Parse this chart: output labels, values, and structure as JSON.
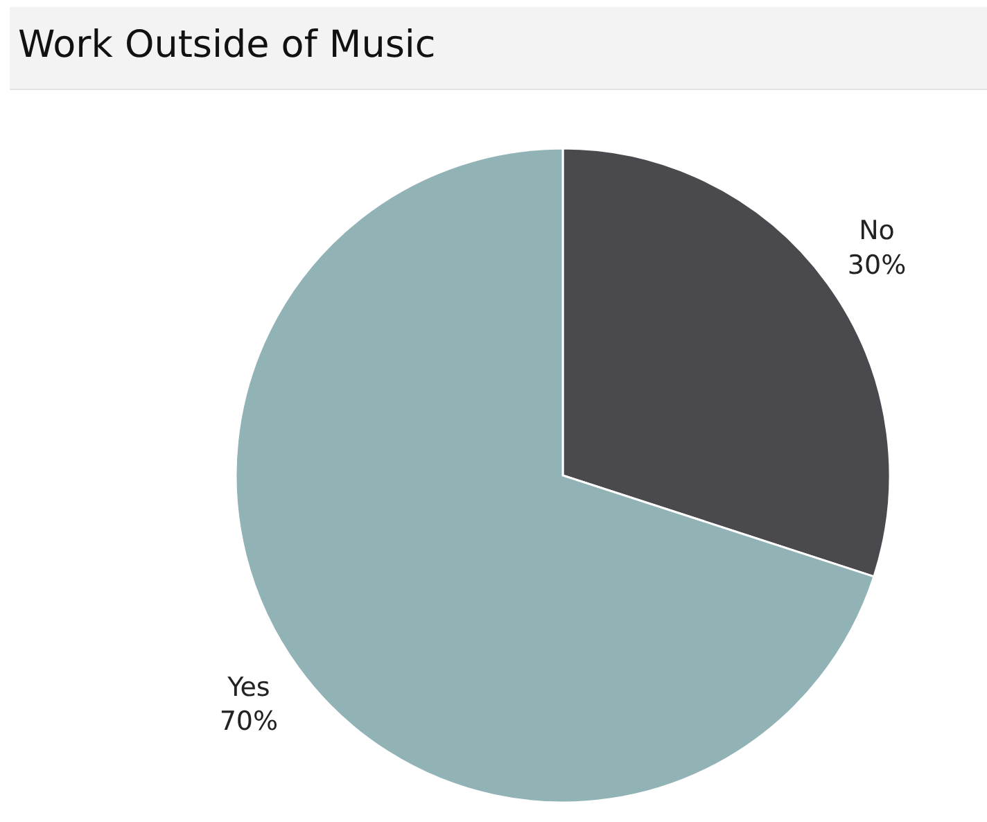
{
  "chart_data": {
    "type": "pie",
    "title": "Work Outside of Music",
    "categories": [
      "No",
      "Yes"
    ],
    "values": [
      30,
      70
    ],
    "colors": [
      "#4a494e",
      "#91b3b6"
    ],
    "value_labels": [
      "30%",
      "70%"
    ]
  }
}
